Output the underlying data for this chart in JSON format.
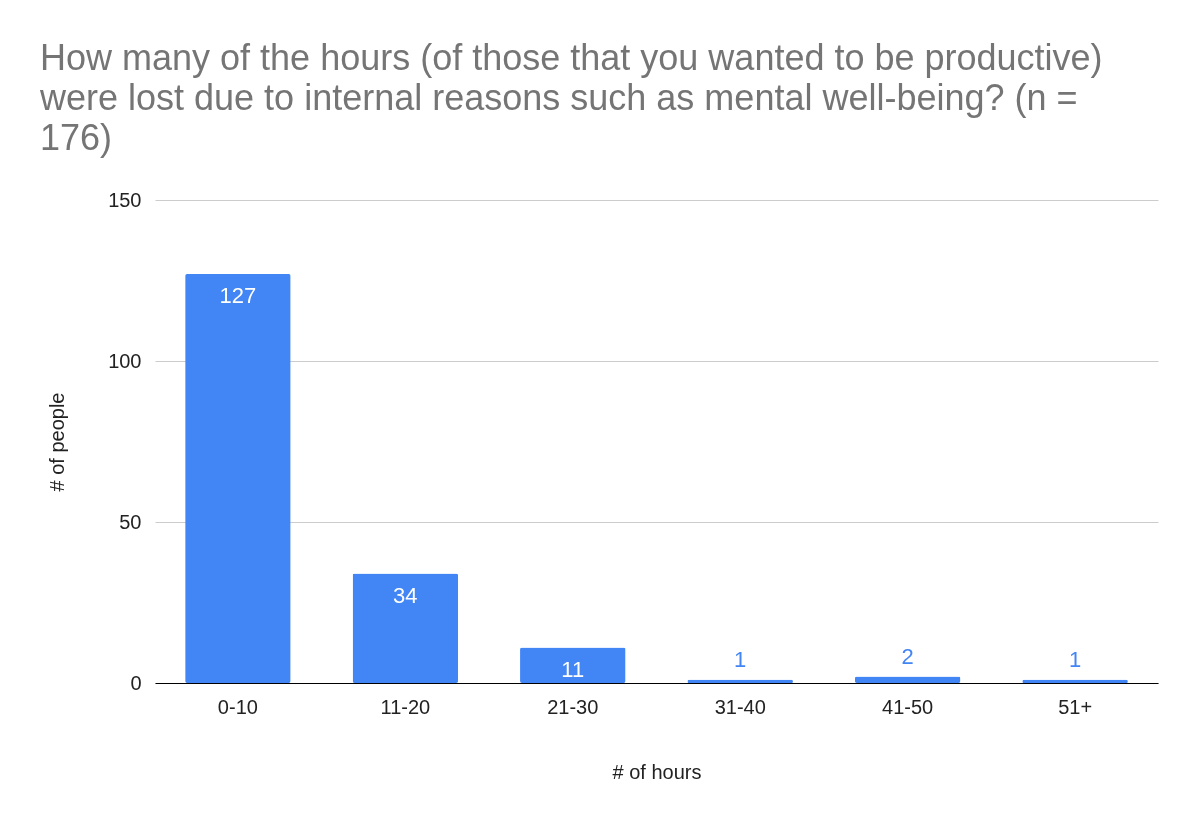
{
  "chart_data": {
    "type": "bar",
    "title": "How many of the hours (of those that you wanted to be productive) were lost due to internal reasons such as mental well-being? (n = 176)",
    "xlabel": "# of hours",
    "ylabel": "# of people",
    "categories": [
      "0-10",
      "11-20",
      "21-30",
      "31-40",
      "41-50",
      "51+"
    ],
    "series": [
      {
        "color": "#4285f4",
        "values": [
          127,
          34,
          11,
          1,
          2,
          1
        ]
      }
    ],
    "ylim": [
      0,
      150
    ],
    "yticks": [
      0,
      50,
      100,
      150
    ],
    "grid": "y",
    "data_labels": true
  }
}
